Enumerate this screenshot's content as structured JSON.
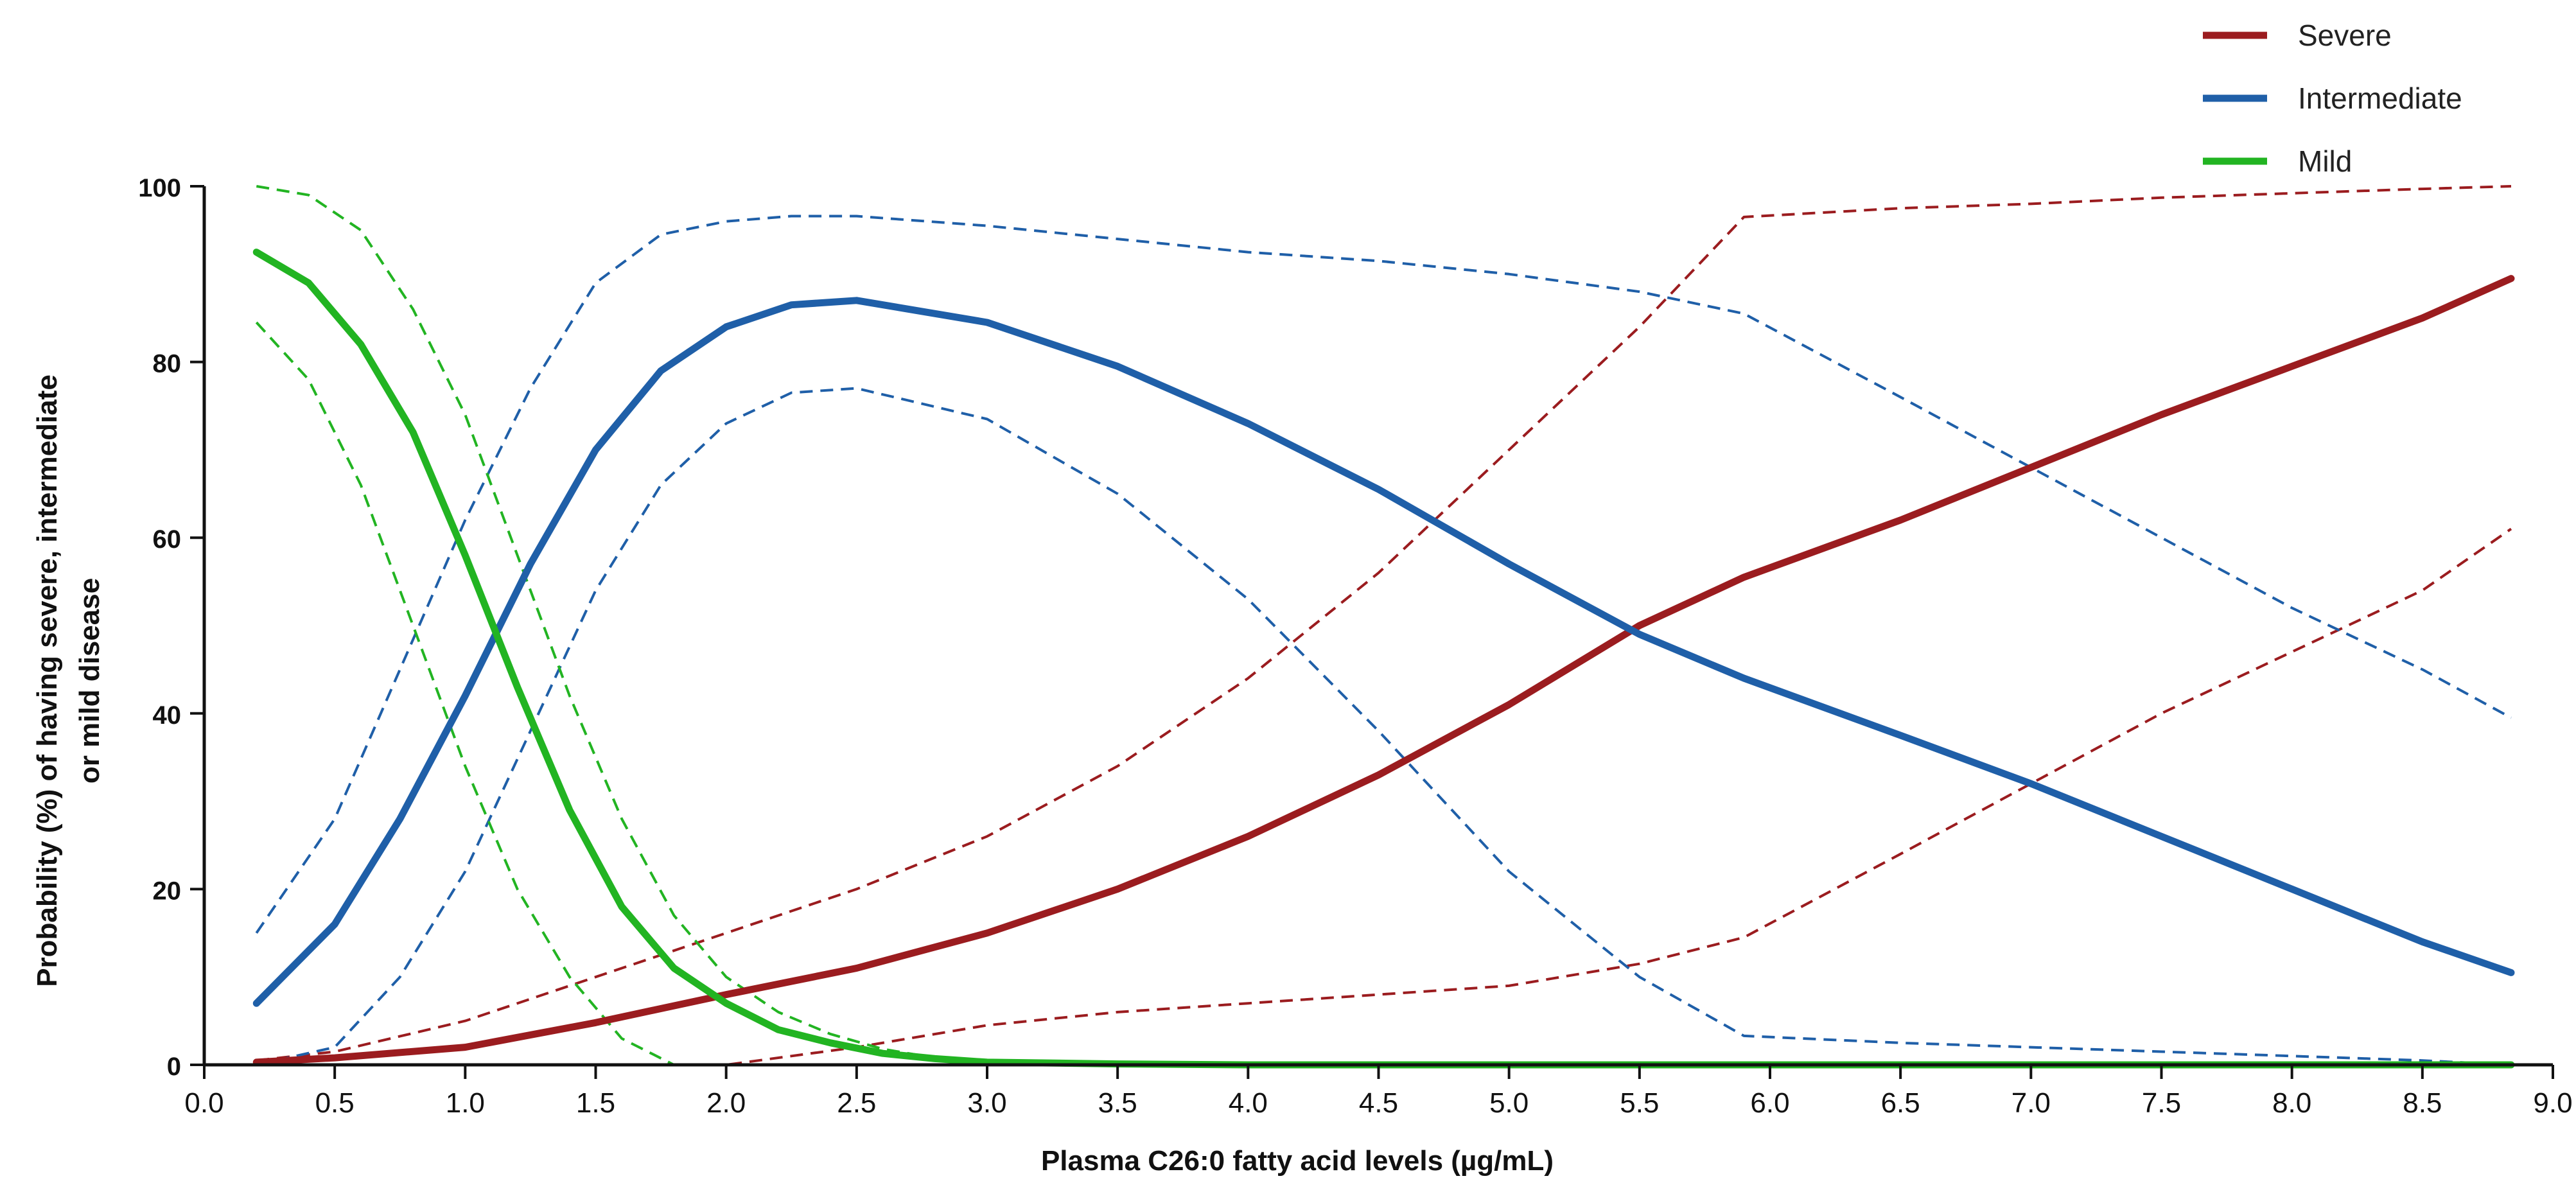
{
  "chart_data": {
    "type": "line",
    "xlabel": "Plasma C26:0 fatty acid levels (µg/mL)",
    "ylabel_line1": "Probability (%) of having severe, intermediate",
    "ylabel_line2": "or mild disease",
    "xlim": [
      0.0,
      9.0
    ],
    "ylim": [
      0,
      100
    ],
    "x_ticks": [
      "0.0",
      "0.5",
      "1.0",
      "1.5",
      "2.0",
      "2.5",
      "3.0",
      "3.5",
      "4.0",
      "4.5",
      "5.0",
      "5.5",
      "6.0",
      "6.5",
      "7.0",
      "7.5",
      "8.0",
      "8.5",
      "9.0"
    ],
    "y_ticks": [
      "0",
      "20",
      "40",
      "60",
      "80",
      "100"
    ],
    "legend_position": "top-right",
    "colors": {
      "severe": "#9b1c1f",
      "intermediate": "#1f5fa8",
      "mild": "#22b422"
    },
    "series": [
      {
        "name": "Severe",
        "color": "#9b1c1f",
        "style": "solid",
        "x": [
          0.2,
          0.5,
          1.0,
          1.5,
          2.0,
          2.5,
          3.0,
          3.5,
          4.0,
          4.5,
          5.0,
          5.5,
          5.9,
          6.5,
          7.0,
          7.5,
          8.0,
          8.5,
          8.84
        ],
        "y": [
          0.3,
          0.8,
          2,
          4.8,
          8,
          11,
          15,
          20,
          26,
          33,
          41,
          50,
          55.5,
          62,
          68,
          74,
          79.5,
          85,
          89.5
        ]
      },
      {
        "name": "Intermediate",
        "color": "#1f5fa8",
        "style": "solid",
        "x": [
          0.2,
          0.5,
          0.75,
          1.0,
          1.25,
          1.5,
          1.75,
          2.0,
          2.25,
          2.5,
          3.0,
          3.5,
          4.0,
          4.5,
          5.0,
          5.5,
          5.9,
          6.5,
          7.0,
          7.5,
          8.0,
          8.5,
          8.84
        ],
        "y": [
          7,
          16,
          28,
          42,
          57,
          70,
          79,
          84,
          86.5,
          87,
          84.5,
          79.5,
          73,
          65.5,
          57,
          49,
          44,
          37.5,
          32,
          26,
          20,
          14,
          10.5
        ]
      },
      {
        "name": "Mild",
        "color": "#22b422",
        "style": "solid",
        "x": [
          0.2,
          0.4,
          0.6,
          0.8,
          1.0,
          1.2,
          1.4,
          1.6,
          1.8,
          2.0,
          2.2,
          2.4,
          2.6,
          2.8,
          3.0,
          3.5,
          4.0,
          5.0,
          6.0,
          7.0,
          8.0,
          8.84
        ],
        "y": [
          92.5,
          89,
          82,
          72,
          58,
          43,
          29,
          18,
          11,
          7,
          4,
          2.5,
          1.3,
          0.7,
          0.3,
          0.1,
          0,
          0,
          0,
          0,
          0,
          0
        ]
      }
    ],
    "confidence_bands": [
      {
        "for": "Severe",
        "color": "#9b1c1f",
        "style": "dashed",
        "bound": "upper",
        "x": [
          0.2,
          0.5,
          1.0,
          1.5,
          2.0,
          2.5,
          3.0,
          3.5,
          4.0,
          4.5,
          5.0,
          5.5,
          5.9,
          6.5,
          7.0,
          7.5,
          8.0,
          8.5,
          8.84
        ],
        "y": [
          0.5,
          1.5,
          5,
          10,
          15,
          20,
          26,
          34,
          44,
          56,
          70,
          84,
          96.5,
          97.5,
          98,
          98.7,
          99.2,
          99.7,
          100
        ]
      },
      {
        "for": "Severe",
        "color": "#9b1c1f",
        "style": "dashed",
        "bound": "lower",
        "x": [
          0.2,
          1.0,
          1.5,
          2.0,
          2.5,
          3.0,
          3.5,
          4.0,
          4.5,
          5.0,
          5.5,
          5.9,
          6.5,
          7.0,
          7.5,
          8.0,
          8.5,
          8.84
        ],
        "y": [
          0,
          0,
          0,
          0,
          2,
          4.5,
          6,
          7,
          8,
          9,
          11.5,
          14.5,
          24,
          32,
          40,
          47,
          54,
          61
        ]
      },
      {
        "for": "Intermediate",
        "color": "#1f5fa8",
        "style": "dashed",
        "bound": "upper",
        "x": [
          0.2,
          0.5,
          0.75,
          1.0,
          1.25,
          1.5,
          1.75,
          2.0,
          2.25,
          2.5,
          3.0,
          3.5,
          4.0,
          4.5,
          5.0,
          5.5,
          5.9,
          6.5,
          7.0,
          7.5,
          8.0,
          8.5,
          8.84
        ],
        "y": [
          15,
          28,
          45,
          62,
          77,
          89,
          94.5,
          96,
          96.6,
          96.6,
          95.5,
          94,
          92.5,
          91.5,
          90,
          88,
          85.5,
          76,
          68,
          60,
          52,
          45,
          39.5
        ]
      },
      {
        "for": "Intermediate",
        "color": "#1f5fa8",
        "style": "dashed",
        "bound": "lower",
        "x": [
          0.2,
          0.5,
          0.75,
          1.0,
          1.25,
          1.5,
          1.75,
          2.0,
          2.25,
          2.5,
          3.0,
          3.5,
          4.0,
          4.5,
          5.0,
          5.5,
          5.9,
          6.5,
          7.0,
          7.5,
          8.0,
          8.5,
          8.84
        ],
        "y": [
          0,
          2,
          10,
          22,
          38,
          54,
          66,
          73,
          76.5,
          77,
          73.5,
          65,
          53,
          38,
          22,
          10,
          3.3,
          2.5,
          2,
          1.5,
          1,
          0.5,
          0
        ]
      },
      {
        "for": "Mild",
        "color": "#22b422",
        "style": "dashed",
        "bound": "upper",
        "x": [
          0.2,
          0.4,
          0.6,
          0.8,
          1.0,
          1.2,
          1.4,
          1.6,
          1.8,
          2.0,
          2.2,
          2.4,
          2.6,
          2.8,
          3.0,
          3.5,
          4.0,
          5.0,
          6.0,
          7.0,
          8.0,
          8.84
        ],
        "y": [
          100,
          99,
          95,
          86,
          74,
          58,
          42,
          28,
          17,
          10,
          6,
          3.5,
          1.8,
          0.8,
          0.4,
          0.1,
          0,
          0,
          0,
          0,
          0,
          0
        ]
      },
      {
        "for": "Mild",
        "color": "#22b422",
        "style": "dashed",
        "bound": "lower",
        "x": [
          0.2,
          0.4,
          0.6,
          0.8,
          1.0,
          1.2,
          1.4,
          1.6,
          1.8,
          2.0,
          3.0,
          4.0,
          5.0,
          6.0,
          7.0,
          8.0,
          8.84
        ],
        "y": [
          84.5,
          78,
          66,
          50,
          34,
          20,
          10,
          3,
          0,
          0,
          0,
          0,
          0,
          0,
          0,
          0,
          0
        ]
      }
    ]
  }
}
